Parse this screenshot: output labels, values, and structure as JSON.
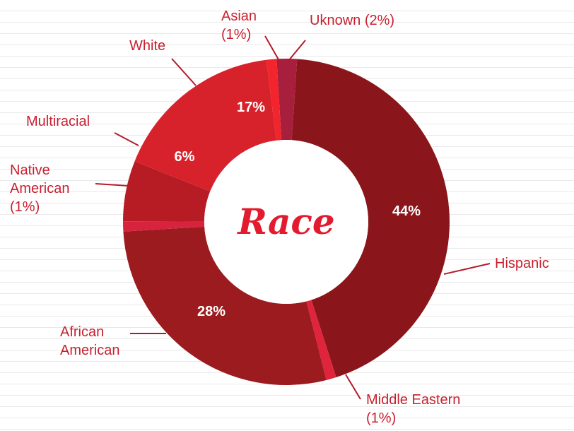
{
  "colors": {
    "label_text": "#c8202f",
    "leader_line": "#b31b2b",
    "center_fill": "#ffffff",
    "center_title": "#e31b2e"
  },
  "chart_data": {
    "type": "pie",
    "title": "Race",
    "slices": [
      {
        "name": "Uknown",
        "value": 2,
        "color": "#a81e3d",
        "pct_label": "",
        "out_label": [
          "Uknown (2%)"
        ]
      },
      {
        "name": "Hispanic",
        "value": 44,
        "color": "#8a151a",
        "pct_label": "44%",
        "out_label": [
          "Hispanic"
        ]
      },
      {
        "name": "Middle Eastern",
        "value": 1,
        "color": "#e0243c",
        "pct_label": "",
        "out_label": [
          "Middle Eastern",
          "(1%)"
        ]
      },
      {
        "name": "African American",
        "value": 28,
        "color": "#9b1b1f",
        "pct_label": "28%",
        "out_label": [
          "African",
          "American"
        ]
      },
      {
        "name": "Native American",
        "value": 1,
        "color": "#d8233f",
        "pct_label": "",
        "out_label": [
          "Native",
          "American",
          "(1%)"
        ]
      },
      {
        "name": "Multiracial",
        "value": 6,
        "color": "#b71c24",
        "pct_label": "6%",
        "out_label": [
          "Multiracial"
        ]
      },
      {
        "name": "White",
        "value": 17,
        "color": "#d7222b",
        "pct_label": "17%",
        "out_label": [
          "White"
        ]
      },
      {
        "name": "Asian",
        "value": 1,
        "color": "#f2242c",
        "pct_label": "",
        "out_label": [
          "Asian",
          "(1%)"
        ]
      }
    ]
  }
}
